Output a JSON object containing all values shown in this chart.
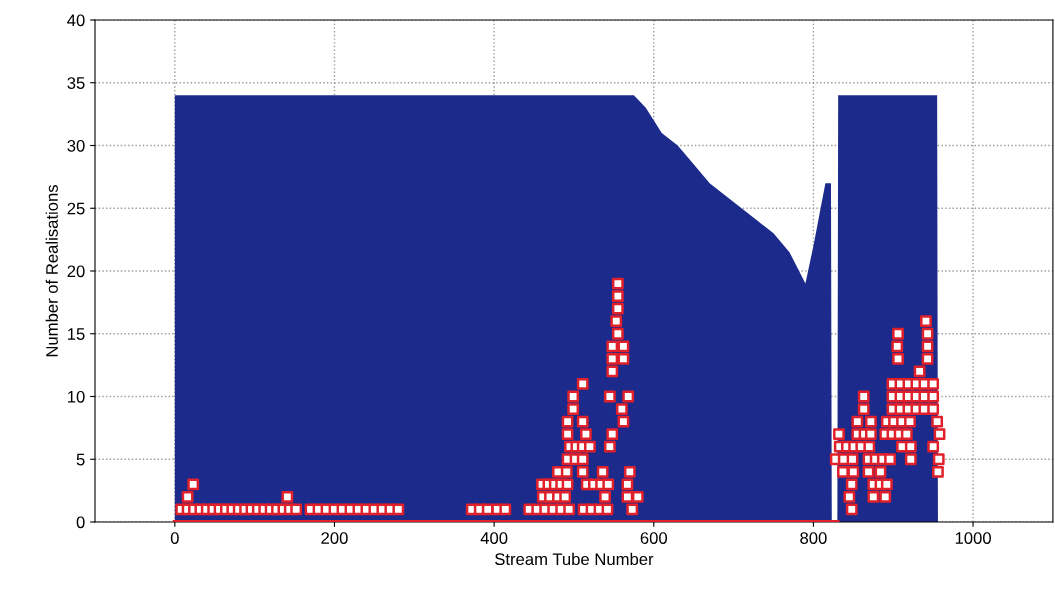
{
  "chart_data": {
    "type": "area",
    "xlabel": "Stream Tube Number",
    "ylabel": "Number of Realisations",
    "xlim": [
      -100,
      1100
    ],
    "xticks": [
      0,
      200,
      400,
      600,
      800,
      1000
    ],
    "ylim": [
      0,
      40
    ],
    "yticks": [
      0,
      5,
      10,
      15,
      20,
      25,
      30,
      35,
      40
    ],
    "grid": true,
    "series": [
      {
        "color": "#1c2a8c",
        "x": [
          0,
          100,
          300,
          500,
          575,
          590,
          610,
          630,
          650,
          670,
          690,
          710,
          730,
          750,
          770,
          790,
          800,
          815,
          822,
          823,
          830,
          831,
          955,
          956
        ],
        "values": [
          34,
          34,
          34,
          34,
          34,
          33,
          31,
          30,
          28.5,
          27,
          26,
          25,
          24,
          23,
          21.5,
          19,
          22,
          27,
          27,
          0,
          0,
          34,
          34,
          0
        ]
      },
      {
        "type": "line",
        "color": "#e0202a",
        "x": [
          0,
          830
        ],
        "values": [
          0,
          0
        ]
      },
      {
        "type": "scatter",
        "color": "#e0202a",
        "marker": "square",
        "x": [
          8,
          16,
          24,
          32,
          40,
          48,
          56,
          64,
          72,
          80,
          88,
          96,
          104,
          112,
          120,
          128,
          136,
          144,
          152,
          170,
          180,
          190,
          200,
          210,
          220,
          230,
          240,
          250,
          260,
          270,
          280,
          372,
          382,
          392,
          404,
          414,
          444,
          454,
          464,
          474,
          484,
          494,
          512,
          522,
          532,
          542,
          573,
          848,
          16,
          141,
          461,
          470,
          480,
          489,
          539,
          567,
          580,
          845,
          875,
          890,
          23,
          460,
          468,
          476,
          484,
          492,
          516,
          525,
          534,
          543,
          567,
          848,
          875,
          884,
          892,
          480,
          491,
          511,
          536,
          570,
          837,
          850,
          869,
          884,
          956,
          492,
          502,
          511,
          828,
          838,
          849,
          869,
          878,
          887,
          896,
          922,
          957,
          495,
          503,
          511,
          520,
          545,
          833,
          842,
          851,
          860,
          870,
          911,
          922,
          950,
          492,
          515,
          548,
          832,
          855,
          864,
          872,
          890,
          899,
          908,
          917,
          958,
          492,
          511,
          562,
          855,
          872,
          892,
          901,
          911,
          921,
          955,
          499,
          560,
          863,
          899,
          909,
          919,
          929,
          939,
          950,
          499,
          545,
          568,
          863,
          899,
          909,
          919,
          929,
          939,
          950,
          511,
          899,
          909,
          919,
          929,
          939,
          950,
          548,
          933,
          548,
          562,
          906,
          943,
          548,
          562,
          905,
          943,
          555,
          906,
          943,
          553,
          941,
          555,
          555,
          555
        ],
        "values": [
          1,
          1,
          1,
          1,
          1,
          1,
          1,
          1,
          1,
          1,
          1,
          1,
          1,
          1,
          1,
          1,
          1,
          1,
          1,
          1,
          1,
          1,
          1,
          1,
          1,
          1,
          1,
          1,
          1,
          1,
          1,
          1,
          1,
          1,
          1,
          1,
          1,
          1,
          1,
          1,
          1,
          1,
          1,
          1,
          1,
          1,
          1,
          1,
          2,
          2,
          2,
          2,
          2,
          2,
          2,
          2,
          2,
          2,
          2,
          2,
          3,
          3,
          3,
          3,
          3,
          3,
          3,
          3,
          3,
          3,
          3,
          3,
          3,
          3,
          3,
          4,
          4,
          4,
          4,
          4,
          4,
          4,
          4,
          4,
          4,
          5,
          5,
          5,
          5,
          5,
          5,
          5,
          5,
          5,
          5,
          5,
          5,
          6,
          6,
          6,
          6,
          6,
          6,
          6,
          6,
          6,
          6,
          6,
          6,
          6,
          7,
          7,
          7,
          7,
          7,
          7,
          7,
          7,
          7,
          7,
          7,
          7,
          8,
          8,
          8,
          8,
          8,
          8,
          8,
          8,
          8,
          8,
          9,
          9,
          9,
          9,
          9,
          9,
          9,
          9,
          9,
          10,
          10,
          10,
          10,
          10,
          10,
          10,
          10,
          10,
          10,
          11,
          11,
          11,
          11,
          11,
          11,
          11,
          12,
          12,
          13,
          13,
          13,
          13,
          14,
          14,
          14,
          14,
          15,
          15,
          15,
          16,
          16,
          17,
          18,
          19
        ]
      }
    ]
  }
}
